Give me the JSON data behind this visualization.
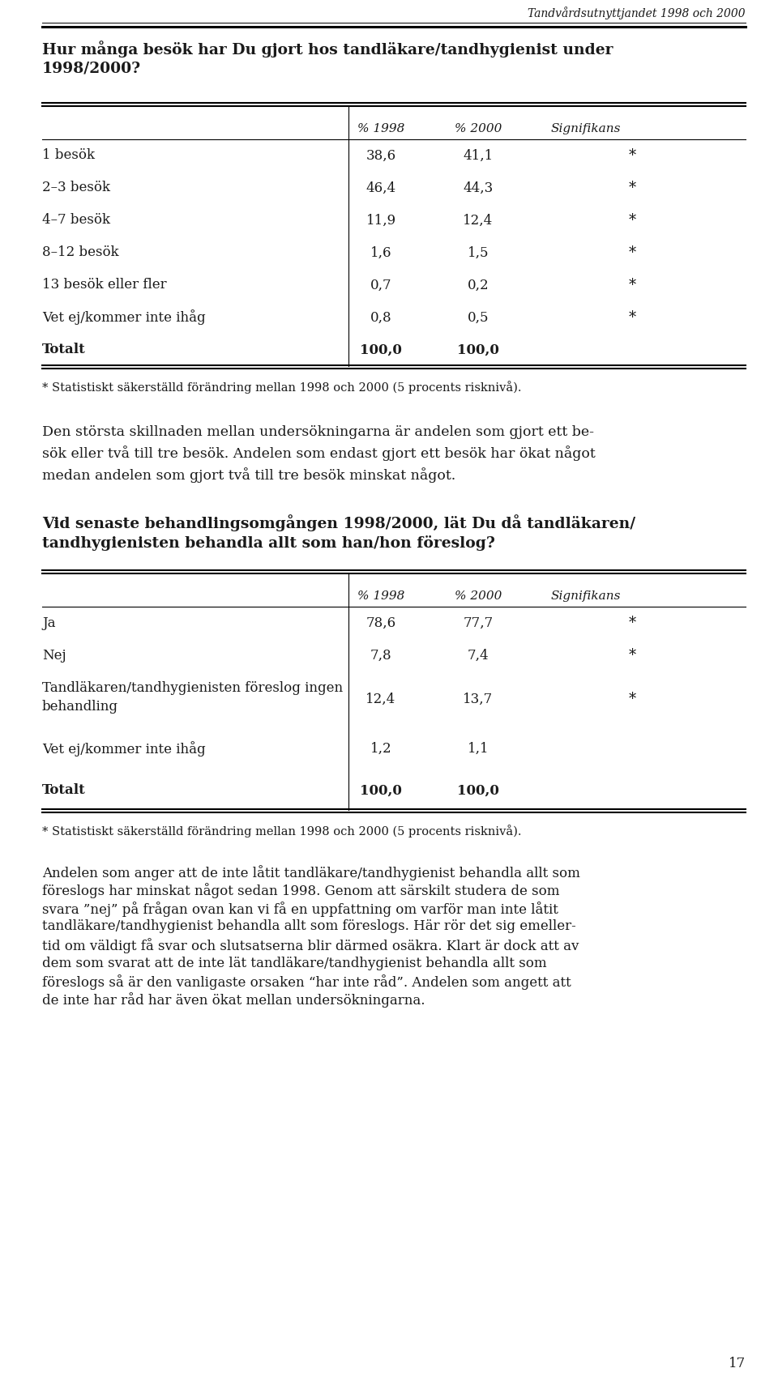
{
  "header_text": "Tandvårdsutnyttjandet 1998 och 2000",
  "question1": "Hur många besök har Du gjort hos tandläkare/tandhygienist under\n1998/2000?",
  "table1_rows": [
    [
      "1 besök",
      "38,6",
      "41,1",
      "*"
    ],
    [
      "2–3 besök",
      "46,4",
      "44,3",
      "*"
    ],
    [
      "4–7 besök",
      "11,9",
      "12,4",
      "*"
    ],
    [
      "8–12 besök",
      "1,6",
      "1,5",
      "*"
    ],
    [
      "13 besök eller fler",
      "0,7",
      "0,2",
      "*"
    ],
    [
      "Vet ej/kommer inte ihåg",
      "0,8",
      "0,5",
      "*"
    ],
    [
      "Totalt",
      "100,0",
      "100,0",
      ""
    ]
  ],
  "footnote1": "* Statistiskt säkerställd förändring mellan 1998 och 2000 (5 procents risknivå).",
  "paragraph1": "Den största skillnaden mellan undersökningarna är andelen som gjort ett be-\nsök eller två till tre besök. Andelen som endast gjort ett besök har ökat något\nmedan andelen som gjort två till tre besök minskat något.",
  "question2": "Vid senaste behandlingsomgången 1998/2000, lät Du då tandläkaren/\ntandhygienisten behandla allt som han/hon föreslog?",
  "table2_rows": [
    [
      "Ja",
      "78,6",
      "77,7",
      "*"
    ],
    [
      "Nej",
      "7,8",
      "7,4",
      "*"
    ],
    [
      "Tandläkaren/tandhygienisten föreslog ingen\nbehandling",
      "12,4",
      "13,7",
      "*"
    ],
    [
      "Vet ej/kommer inte ihåg",
      "1,2",
      "1,1",
      ""
    ],
    [
      "Totalt",
      "100,0",
      "100,0",
      ""
    ]
  ],
  "footnote2": "* Statistiskt säkerställd förändring mellan 1998 och 2000 (5 procents risknivå).",
  "paragraph2_lines": [
    "Andelen som anger att de inte låtit tandläkare/tandhygienist behandla allt som",
    "föreslogs har minskat något sedan 1998. Genom att särskilt studera de som",
    "svara ”nej” på frågan ovan kan vi få en uppfattning om varför man inte låtit",
    "tandläkare/tandhygienist behandla allt som föreslogs. Här rör det sig emeller-",
    "tid om väldigt få svar och slutsatserna blir därmed osäkra. Klart är dock att av",
    "dem som svarat att de inte lät tandläkare/tandhygienist behandla allt som",
    "föreslogs så är den vanligaste orsaken “har inte råd”. Andelen som angett att",
    "de inte har råd har även ökat mellan undersökningarna."
  ],
  "page_number": "17",
  "bg_color": "#ffffff",
  "text_color": "#1a1a1a",
  "line_color": "#000000"
}
